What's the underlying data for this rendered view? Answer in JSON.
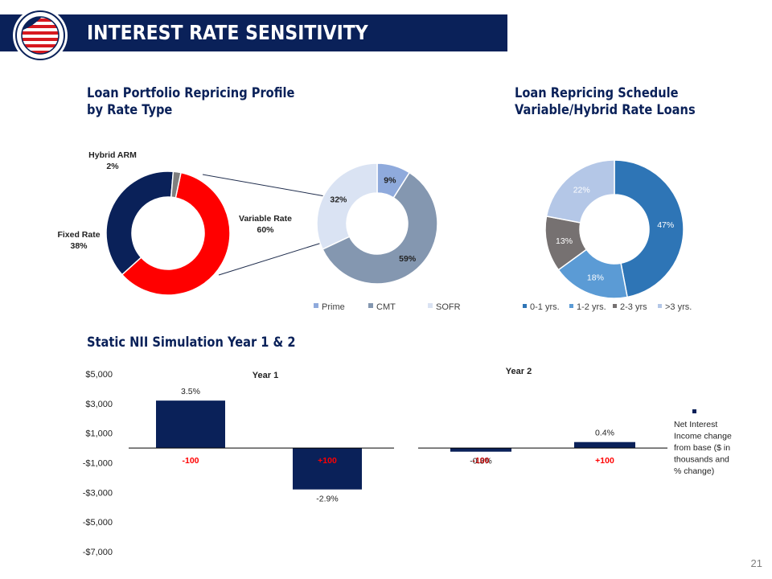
{
  "header": {
    "title": "INTEREST RATE SENSITIVITY"
  },
  "page_number": "21",
  "colors": {
    "navy": "#0a2159",
    "red": "#ff0000",
    "gray": "#7f7f7f"
  },
  "sections": {
    "portfolio_title_line1": "Loan Portfolio Repricing Profile",
    "portfolio_title_line2": "by Rate Type",
    "schedule_title_line1": "Loan Repricing Schedule",
    "schedule_title_line2": "Variable/Hybrid Rate Loans",
    "nii_title": "Static NII Simulation Year 1 & 2"
  },
  "chart_data": [
    {
      "type": "pie",
      "variant": "donut",
      "slices": [
        {
          "label": "Variable Rate",
          "value": 60,
          "display": "60%",
          "color": "#ff0000"
        },
        {
          "label": "Fixed Rate",
          "value": 38,
          "display": "38%",
          "color": "#0a2159"
        },
        {
          "label": "Hybrid ARM",
          "value": 2,
          "display": "2%",
          "color": "#7f7f7f"
        }
      ]
    },
    {
      "type": "pie",
      "variant": "donut",
      "legend": "bottom",
      "slices": [
        {
          "label": "Prime",
          "value": 9,
          "display": "9%",
          "color": "#8faadc"
        },
        {
          "label": "CMT",
          "value": 59,
          "display": "59%",
          "color": "#8497b0"
        },
        {
          "label": "SOFR",
          "value": 32,
          "display": "32%",
          "color": "#dae3f3"
        }
      ]
    },
    {
      "type": "pie",
      "variant": "donut",
      "legend": "bottom",
      "slices": [
        {
          "label": "0-1 yrs.",
          "value": 47,
          "display": "47%",
          "color": "#2e75b6"
        },
        {
          "label": "1-2 yrs.",
          "value": 18,
          "display": "18%",
          "color": "#5b9bd5"
        },
        {
          "label": "2-3 yrs",
          "value": 13,
          "display": "13%",
          "color": "#767171"
        },
        {
          "label": ">3 yrs.",
          "value": 22,
          "display": "22%",
          "color": "#b4c7e7"
        }
      ]
    },
    {
      "type": "bar",
      "ylim": [
        -7000,
        5000
      ],
      "yticks": [
        5000,
        3000,
        1000,
        -1000,
        -3000,
        -5000,
        -7000
      ],
      "ytick_labels": [
        "$5,000",
        "$3,000",
        "$1,000",
        "-$1,000",
        "-$3,000",
        "-$5,000",
        "-$7,000"
      ],
      "legend": "Net Interest Income change from base ($ in thousands and % change)",
      "legend_lines": [
        "Net Interest",
        "Income change",
        "from base ($ in",
        "thousands and",
        "% change)"
      ],
      "panels": [
        {
          "title": "Year 1",
          "categories": [
            "-100",
            "+100"
          ],
          "values": [
            3200,
            -2800
          ],
          "labels": [
            "3.5%",
            "-2.9%"
          ],
          "category_colors": [
            "#ff0000",
            "#ff0000"
          ]
        },
        {
          "title": "Year 2",
          "categories": [
            "-100",
            "+100"
          ],
          "values": [
            -250,
            400
          ],
          "labels": [
            "-0.3%",
            "0.4%"
          ],
          "category_colors": [
            "#c00000",
            "#ff0000"
          ]
        }
      ],
      "bar_color": "#0a2159"
    }
  ]
}
